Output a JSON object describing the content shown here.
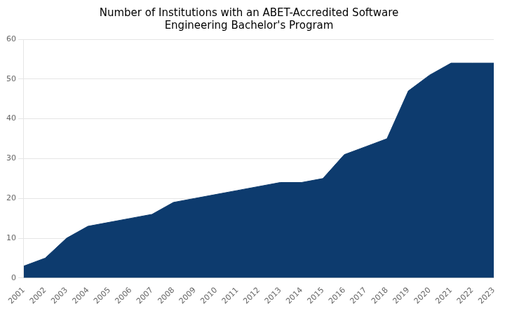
{
  "chart_data": {
    "type": "area",
    "title": "Number of Institutions with an ABET-Accredited Software\nEngineering Bachelor's Program",
    "x": [
      2001,
      2002,
      2003,
      2004,
      2005,
      2006,
      2007,
      2008,
      2009,
      2010,
      2011,
      2012,
      2013,
      2014,
      2015,
      2016,
      2017,
      2018,
      2019,
      2020,
      2021,
      2022,
      2023
    ],
    "values": [
      3,
      5,
      10,
      13,
      14,
      15,
      16,
      19,
      20,
      21,
      22,
      23,
      24,
      24,
      25,
      31,
      33,
      35,
      47,
      51,
      54,
      54,
      54
    ],
    "color": "#0d3b6e",
    "xlim": [
      2001,
      2023
    ],
    "xticks": [
      2001,
      2002,
      2003,
      2004,
      2005,
      2006,
      2007,
      2008,
      2009,
      2010,
      2011,
      2012,
      2013,
      2014,
      2015,
      2016,
      2017,
      2018,
      2019,
      2020,
      2021,
      2022,
      2023
    ],
    "ylim": [
      0,
      60
    ],
    "yticks": [
      0,
      10,
      20,
      30,
      40,
      50,
      60
    ],
    "grid": "y"
  }
}
